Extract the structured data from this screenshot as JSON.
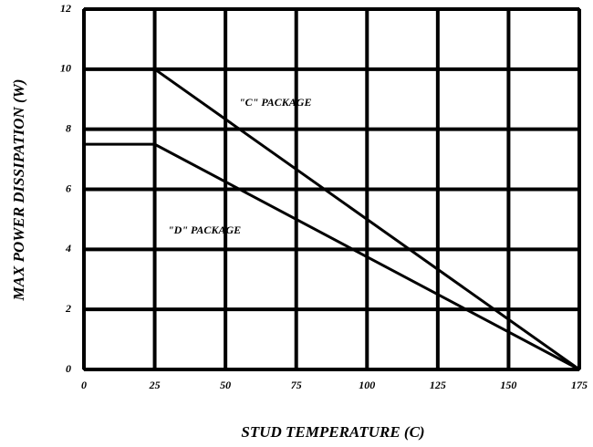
{
  "chart_data": {
    "type": "line",
    "xlabel": "STUD TEMPERATURE (C)",
    "ylabel": "MAX POWER DISSIPATION (W)",
    "x": [
      0,
      25,
      175
    ],
    "series": [
      {
        "name": "\"C\" PACKAGE",
        "color": "#000000",
        "values": [
          null,
          10,
          0
        ]
      },
      {
        "name": "\"D\" PACKAGE",
        "color": "#000000",
        "values": [
          7.5,
          7.5,
          0
        ]
      }
    ],
    "xlim": [
      0,
      175
    ],
    "xticks": [
      0,
      25,
      50,
      75,
      100,
      125,
      150,
      175
    ],
    "ylim": [
      0,
      12
    ],
    "yticks": [
      0,
      2,
      4,
      6,
      8,
      10,
      12
    ],
    "grid": true
  }
}
